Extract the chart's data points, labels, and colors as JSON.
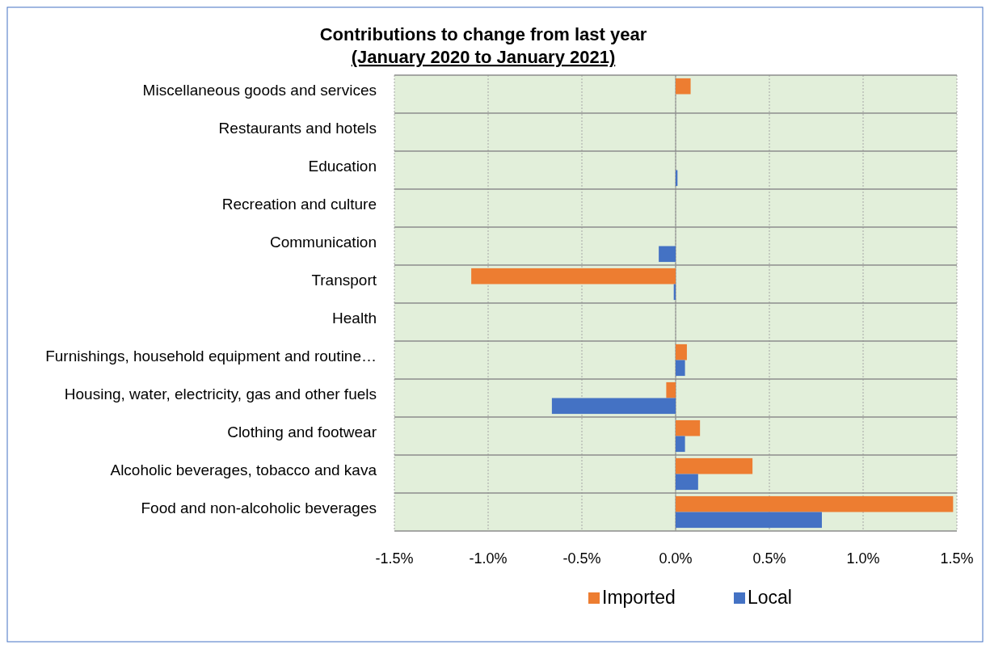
{
  "chart_data": {
    "type": "bar",
    "orientation": "horizontal",
    "title": "Contributions to change from last year",
    "subtitle": "(January 2020 to January 2021)",
    "categories": [
      "Miscellaneous goods and services",
      "Restaurants and hotels",
      "Education",
      "Recreation and culture",
      "Communication",
      "Transport",
      "Health",
      "Furnishings, household equipment and routine…",
      "Housing, water, electricity, gas and other fuels",
      "Clothing and footwear",
      "Alcoholic beverages, tobacco and kava",
      "Food and non-alcoholic beverages"
    ],
    "series": [
      {
        "name": "Imported",
        "color": "#ed7d31",
        "values": [
          0.08,
          null,
          null,
          null,
          null,
          -1.09,
          null,
          0.06,
          -0.05,
          0.13,
          0.41,
          1.48
        ]
      },
      {
        "name": "Local",
        "color": "#4472c4",
        "values": [
          null,
          null,
          0.01,
          null,
          -0.09,
          -0.01,
          null,
          0.05,
          -0.66,
          0.05,
          0.12,
          0.78
        ]
      }
    ],
    "xlim": [
      -1.5,
      1.5
    ],
    "xticks": [
      {
        "value": -1.5,
        "label": "-1.5%"
      },
      {
        "value": -1,
        "label": "-1.0%"
      },
      {
        "value": -0.5,
        "label": "-0.5%"
      },
      {
        "value": 0,
        "label": "0.0%"
      },
      {
        "value": 0.5,
        "label": "0.5%"
      },
      {
        "value": 1,
        "label": "1.0%"
      },
      {
        "value": 1.5,
        "label": "1.5%"
      }
    ],
    "grid": true,
    "legend": "bottom"
  }
}
